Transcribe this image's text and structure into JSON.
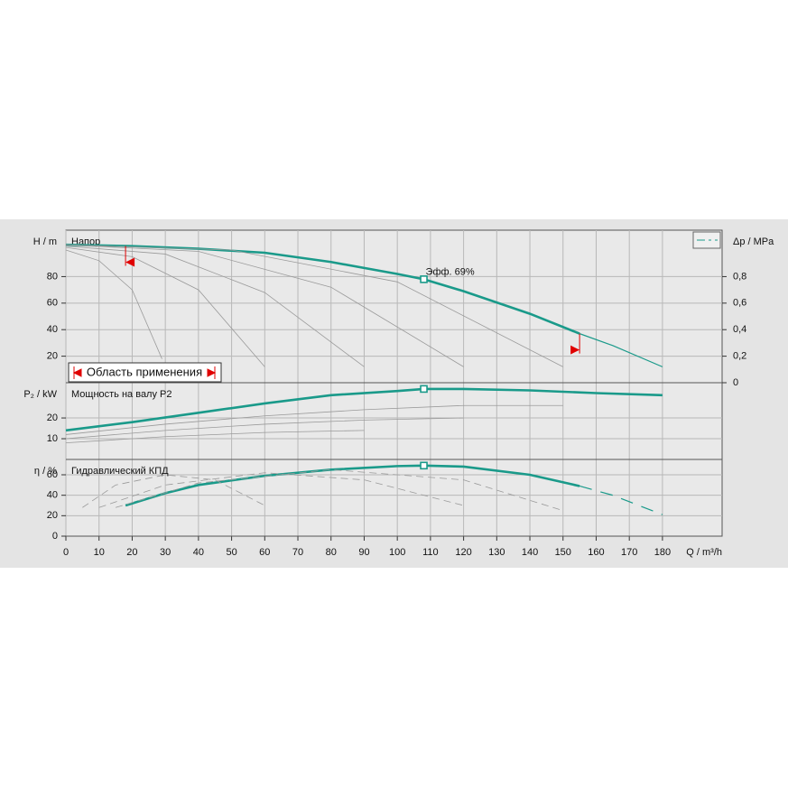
{
  "chart_data": [
    {
      "type": "line",
      "title": "Напор",
      "ylabel": "H / m",
      "y2label": "Δp / MPa",
      "ylim": [
        0,
        115
      ],
      "yticks": [
        20,
        40,
        60,
        80
      ],
      "y2lim": [
        0,
        1.15
      ],
      "y2ticks": [
        0,
        {
          "value": 0.2,
          "label": "0,2"
        },
        {
          "value": 0.4,
          "label": "0,4"
        },
        {
          "value": 0.6,
          "label": "0,6"
        },
        {
          "value": 0.8,
          "label": "0,8"
        }
      ],
      "grid": true,
      "series": [
        {
          "color": "#1a9a8a",
          "style": "bold",
          "x": [
            0,
            20,
            40,
            60,
            80,
            100,
            108,
            120,
            140,
            155
          ],
          "values": [
            104,
            103,
            101,
            98,
            91,
            82,
            78,
            69,
            52,
            37
          ]
        },
        {
          "color": "#1a9a8a",
          "style": "thin",
          "x": [
            155,
            165,
            180
          ],
          "values": [
            37,
            28,
            12
          ]
        },
        {
          "color": "#9a9a9a",
          "style": "thin",
          "x": [
            0,
            10,
            20,
            29
          ],
          "values": [
            100,
            92,
            70,
            18
          ]
        },
        {
          "color": "#9a9a9a",
          "style": "thin",
          "x": [
            0,
            20,
            40,
            60
          ],
          "values": [
            102,
            95,
            70,
            12
          ]
        },
        {
          "color": "#9a9a9a",
          "style": "thin",
          "x": [
            0,
            30,
            60,
            90
          ],
          "values": [
            103,
            97,
            68,
            12
          ]
        },
        {
          "color": "#9a9a9a",
          "style": "thin",
          "x": [
            0,
            40,
            80,
            120
          ],
          "values": [
            104,
            99,
            72,
            12
          ]
        },
        {
          "color": "#9a9a9a",
          "style": "thin",
          "x": [
            0,
            50,
            100,
            150
          ],
          "values": [
            104,
            100,
            76,
            12
          ]
        }
      ],
      "duty_point": {
        "x": 108,
        "y": 78
      },
      "annotation": {
        "text": "Эфф.  69%",
        "x": 108,
        "y": 78
      },
      "application_range": {
        "label": "Область применения",
        "min": 18,
        "max": 155,
        "color": "#e00000"
      }
    },
    {
      "type": "line",
      "title": "Мощность на валу P2",
      "ylabel": "P₂ / kW",
      "ylim": [
        0,
        37
      ],
      "yticks": [
        10,
        20
      ],
      "grid": true,
      "series": [
        {
          "color": "#1a9a8a",
          "style": "bold",
          "x": [
            0,
            20,
            40,
            60,
            80,
            100,
            108,
            120,
            140,
            160,
            180
          ],
          "values": [
            14,
            18,
            22.5,
            27,
            31,
            33,
            34,
            34,
            33.3,
            32,
            31
          ]
        },
        {
          "color": "#9a9a9a",
          "style": "thin",
          "x": [
            0,
            30,
            60,
            90,
            120,
            150
          ],
          "values": [
            12,
            17,
            21,
            24,
            26,
            26
          ]
        },
        {
          "color": "#9a9a9a",
          "style": "thin",
          "x": [
            0,
            30,
            60,
            90,
            120
          ],
          "values": [
            10,
            14,
            17,
            19,
            20
          ]
        },
        {
          "color": "#9a9a9a",
          "style": "thin",
          "x": [
            0,
            30,
            60,
            90
          ],
          "values": [
            8,
            11,
            13,
            14
          ]
        }
      ],
      "duty_point": {
        "x": 108,
        "y": 34
      }
    },
    {
      "type": "line",
      "title": "Гидравлический КПД",
      "ylabel": "η / %",
      "xlabel": "Q / m³/h",
      "ylim": [
        0,
        75
      ],
      "yticks": [
        0,
        20,
        40,
        60
      ],
      "xlim": [
        0,
        198
      ],
      "xticks": [
        0,
        10,
        20,
        30,
        40,
        50,
        60,
        70,
        80,
        90,
        100,
        110,
        120,
        130,
        140,
        150,
        160,
        170,
        180
      ],
      "grid": true,
      "series": [
        {
          "color": "#1a9a8a",
          "style": "bold",
          "x": [
            18,
            30,
            40,
            60,
            80,
            100,
            108,
            120,
            140,
            155
          ],
          "values": [
            30,
            42,
            50,
            59,
            65,
            68.5,
            69,
            68,
            60,
            49
          ]
        },
        {
          "color": "#1a9a8a",
          "style": "dashed",
          "x": [
            155,
            165,
            180
          ],
          "values": [
            49,
            40,
            21
          ]
        },
        {
          "color": "#9a9a9a",
          "style": "dashed",
          "x": [
            5,
            15,
            30,
            45,
            60
          ],
          "values": [
            28,
            50,
            60,
            55,
            30
          ]
        },
        {
          "color": "#9a9a9a",
          "style": "dashed",
          "x": [
            10,
            30,
            60,
            90,
            120
          ],
          "values": [
            28,
            50,
            62,
            55,
            30
          ]
        },
        {
          "color": "#9a9a9a",
          "style": "dashed",
          "x": [
            15,
            40,
            80,
            120,
            150
          ],
          "values": [
            28,
            52,
            65,
            55,
            25
          ]
        }
      ],
      "duty_point": {
        "x": 108,
        "y": 69
      }
    }
  ]
}
